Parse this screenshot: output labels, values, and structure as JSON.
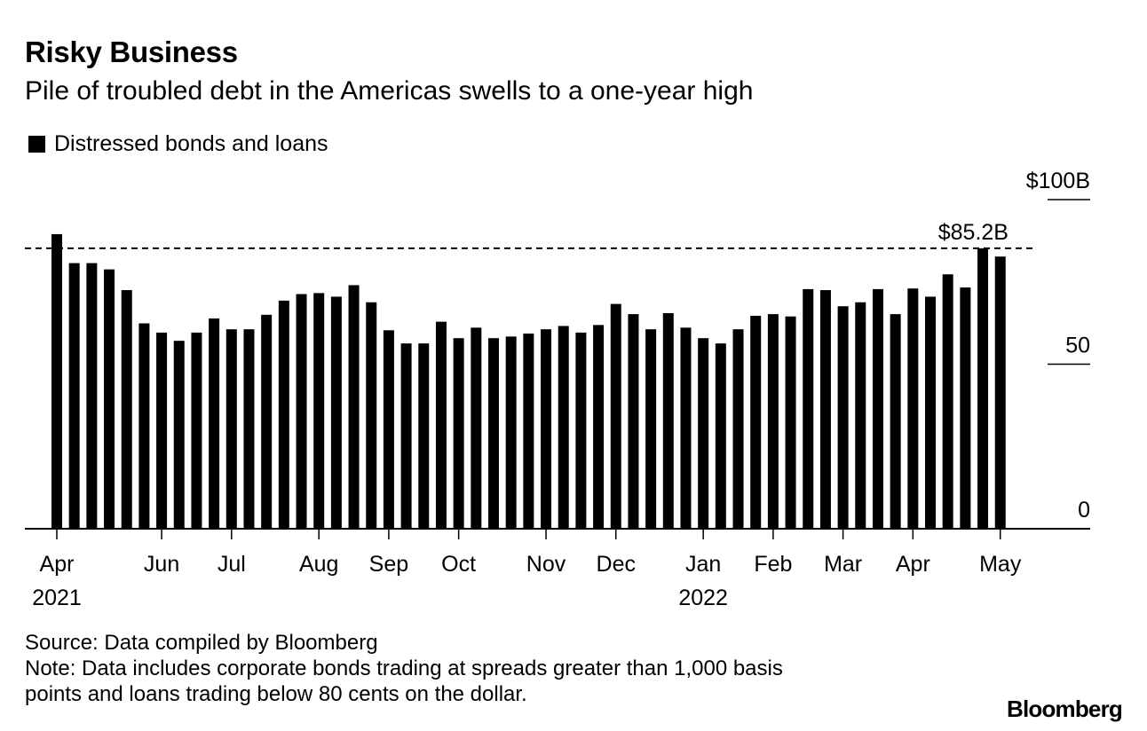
{
  "header": {
    "title": "Risky Business",
    "subtitle": "Pile of troubled debt in the Americas swells to a one-year high"
  },
  "legend": {
    "label": "Distressed bonds and loans",
    "color": "#000000"
  },
  "chart_data": {
    "type": "bar",
    "title": "Risky Business",
    "subtitle": "Pile of troubled debt in the Americas swells to a one-year high",
    "xlabel": "",
    "ylabel": "",
    "ylim": [
      0,
      100
    ],
    "grid": false,
    "legend_position": "top-left",
    "series": [
      {
        "name": "Distressed bonds and loans",
        "color": "#000000",
        "values": [
          89.5,
          80.7,
          80.7,
          78.8,
          72.5,
          62.4,
          59.6,
          57.1,
          59.6,
          63.9,
          60.6,
          60.6,
          65.0,
          69.3,
          71.3,
          71.6,
          70.5,
          74.0,
          68.8,
          60.3,
          56.3,
          56.3,
          62.9,
          57.9,
          61.1,
          57.9,
          58.4,
          59.3,
          60.6,
          61.6,
          59.6,
          61.9,
          68.3,
          65.2,
          60.6,
          65.5,
          61.1,
          57.9,
          56.3,
          60.6,
          64.7,
          65.2,
          64.5,
          72.8,
          72.5,
          67.6,
          68.8,
          72.8,
          65.2,
          73.0,
          70.5,
          77.3,
          73.3,
          85.2,
          82.7
        ]
      }
    ],
    "y_ticks": [
      {
        "value": 100,
        "label": "$100B"
      },
      {
        "value": 50,
        "label": "50"
      },
      {
        "value": 0,
        "label": "0"
      }
    ],
    "x_ticks": [
      {
        "index": 0,
        "label": "Apr",
        "year": "2021"
      },
      {
        "index": 6,
        "label": "Jun",
        "year": ""
      },
      {
        "index": 10,
        "label": "Jul",
        "year": ""
      },
      {
        "index": 15,
        "label": "Aug",
        "year": ""
      },
      {
        "index": 19,
        "label": "Sep",
        "year": ""
      },
      {
        "index": 23,
        "label": "Oct",
        "year": ""
      },
      {
        "index": 28,
        "label": "Nov",
        "year": ""
      },
      {
        "index": 32,
        "label": "Dec",
        "year": ""
      },
      {
        "index": 37,
        "label": "Jan",
        "year": "2022"
      },
      {
        "index": 41,
        "label": "Feb",
        "year": ""
      },
      {
        "index": 45,
        "label": "Mar",
        "year": ""
      },
      {
        "index": 49,
        "label": "Apr",
        "year": ""
      },
      {
        "index": 54,
        "label": "May",
        "year": ""
      }
    ],
    "reference_line": {
      "value": 85.2,
      "label": "$85.2B",
      "style": "dashed"
    }
  },
  "footer": {
    "source": "Source: Data compiled by Bloomberg",
    "note_line1": "Note: Data includes corporate bonds trading at spreads greater than 1,000 basis",
    "note_line2": "points and loans trading below 80 cents on the dollar."
  },
  "brand": "Bloomberg"
}
